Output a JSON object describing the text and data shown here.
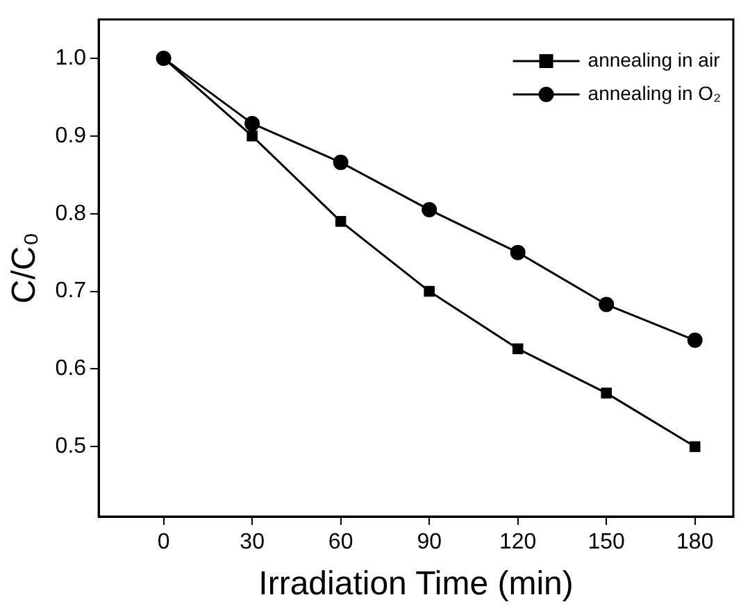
{
  "chart_data": {
    "type": "line",
    "xlabel": "Irradiation Time (min)",
    "ylabel": "C/C₀",
    "x": [
      0,
      30,
      60,
      90,
      120,
      150,
      180
    ],
    "series": [
      {
        "name": "annealing in air",
        "color": "#000000",
        "marker": "square",
        "values": [
          1.0,
          0.9,
          0.79,
          0.7,
          0.626,
          0.569,
          0.5
        ]
      },
      {
        "name": "annealing in O₂",
        "color": "#000000",
        "marker": "circle",
        "values": [
          1.0,
          0.916,
          0.866,
          0.805,
          0.75,
          0.683,
          0.637
        ]
      }
    ],
    "xlim": [
      -22,
      193
    ],
    "xticks": [
      0,
      30,
      60,
      90,
      120,
      150,
      180
    ],
    "ylim": [
      0.41,
      1.05
    ],
    "yticks": [
      0.5,
      0.6,
      0.7,
      0.8,
      0.9,
      {
        "value": 1,
        "label": "1.0"
      }
    ],
    "grid": false,
    "legend": "top right",
    "line_style": "solid"
  }
}
